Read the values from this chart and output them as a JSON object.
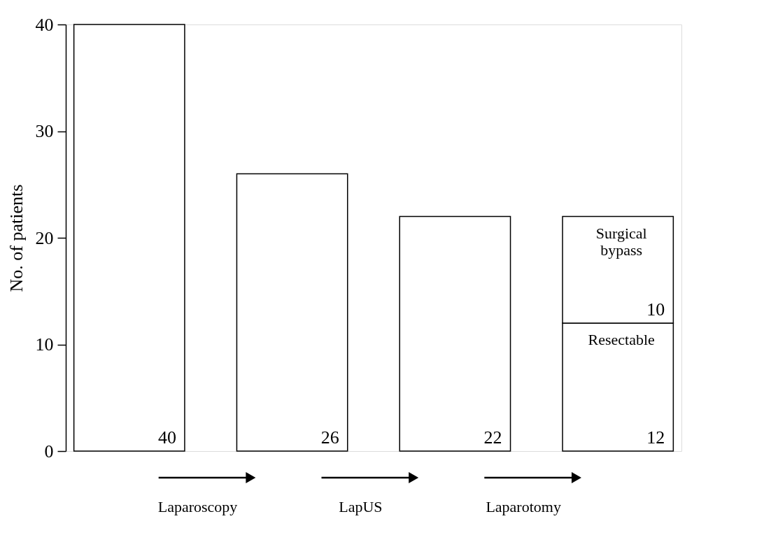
{
  "chart_data": {
    "type": "bar",
    "ylabel": "No. of patients",
    "categories": [
      null,
      null,
      null,
      null
    ],
    "stacked": true,
    "series": [
      {
        "name": "Resectable",
        "color": "#ffffff",
        "values": [
          40,
          26,
          22,
          12
        ]
      },
      {
        "name": "Surgical bypass",
        "color": "#ffffff",
        "values": [
          null,
          null,
          null,
          10
        ]
      }
    ],
    "ylim": [
      0,
      40
    ],
    "yticks": [
      0,
      10,
      20,
      30,
      40
    ],
    "grid": false,
    "data_labels": true,
    "tick_labels": "y",
    "annotations": [
      "Laparoscopy",
      "LapUS",
      "Laparotomy"
    ]
  }
}
